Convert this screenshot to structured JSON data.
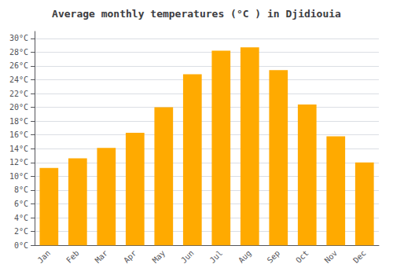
{
  "chart_data": {
    "type": "bar",
    "title": "Average monthly temperatures (°C ) in Djidiouia",
    "categories": [
      "Jan",
      "Feb",
      "Mar",
      "Apr",
      "May",
      "Jun",
      "Jul",
      "Aug",
      "Sep",
      "Oct",
      "Nov",
      "Dec"
    ],
    "values": [
      11.2,
      12.6,
      14.1,
      16.3,
      20.0,
      24.8,
      28.2,
      28.7,
      25.4,
      20.4,
      15.8,
      12.0
    ],
    "color": "#FFAA00",
    "ylim": [
      0,
      31
    ],
    "yticks": [
      {
        "value": 0,
        "label": "0°C"
      },
      {
        "value": 2,
        "label": "2°C"
      },
      {
        "value": 4,
        "label": "4°C"
      },
      {
        "value": 6,
        "label": "6°C"
      },
      {
        "value": 8,
        "label": "8°C"
      },
      {
        "value": 10,
        "label": "10°C"
      },
      {
        "value": 12,
        "label": "12°C"
      },
      {
        "value": 14,
        "label": "14°C"
      },
      {
        "value": 16,
        "label": "16°C"
      },
      {
        "value": 18,
        "label": "18°C"
      },
      {
        "value": 20,
        "label": "20°C"
      },
      {
        "value": 22,
        "label": "22°C"
      },
      {
        "value": 24,
        "label": "24°C"
      },
      {
        "value": 26,
        "label": "26°C"
      },
      {
        "value": 28,
        "label": "28°C"
      },
      {
        "value": 30,
        "label": "30°C"
      }
    ],
    "grid": true
  }
}
